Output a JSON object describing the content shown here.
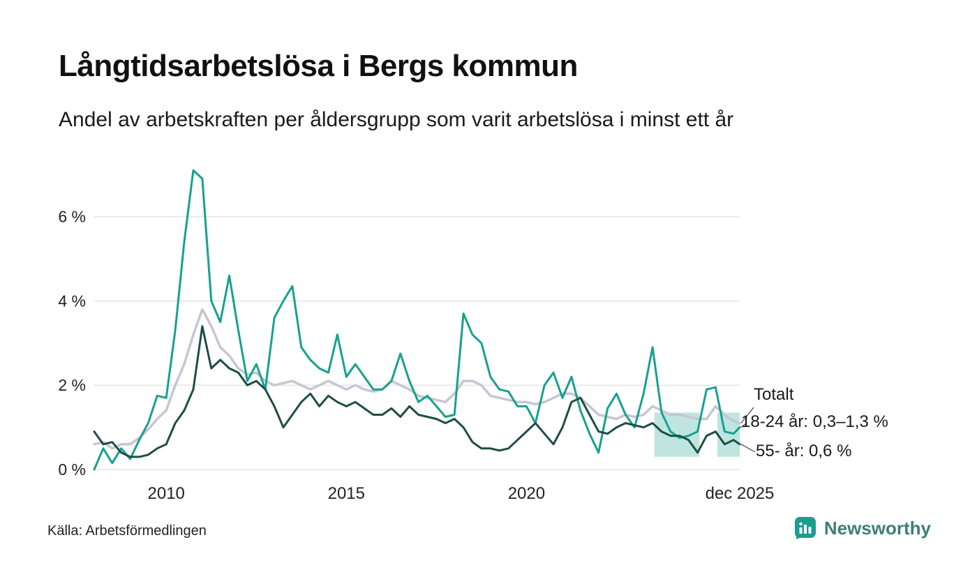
{
  "page": {
    "title": "Långtidsarbetslösa i Bergs kommun",
    "subtitle": "Andel av arbetskraften per åldersgrupp som varit arbetslösa i minst ett år",
    "source": "Källa: Arbetsförmedlingen",
    "brand": {
      "name": "Newsworthy",
      "text_color": "#3d7e78",
      "icon_color": "#1a9e8f"
    }
  },
  "chart_data": {
    "type": "line",
    "title": "Långtidsarbetslösa i Bergs kommun",
    "subtitle": "Andel av arbetskraften per åldersgrupp som varit arbetslösa i minst ett år",
    "xlabel": "",
    "ylabel": "",
    "grid": "horizontal",
    "legend_position": "annotations-right",
    "x_range": [
      2008.0,
      2025.92
    ],
    "y_range": [
      0,
      7.3
    ],
    "colors": {
      "grid": "#e4e4e4",
      "tick_text": "#222222"
    },
    "y_ticks": [
      {
        "value": 0,
        "label": "0 %"
      },
      {
        "value": 2,
        "label": "2 %"
      },
      {
        "value": 4,
        "label": "4 %"
      },
      {
        "value": 6,
        "label": "6 %"
      }
    ],
    "x_ticks": [
      {
        "value": 2010,
        "label": "2010"
      },
      {
        "value": 2015,
        "label": "2015"
      },
      {
        "value": 2020,
        "label": "2020"
      },
      {
        "value": 2025.92,
        "label": "dec 2025"
      }
    ],
    "x": [
      2008,
      2008.25,
      2008.5,
      2008.75,
      2009,
      2009.25,
      2009.5,
      2009.75,
      2010,
      2010.25,
      2010.5,
      2010.75,
      2011,
      2011.25,
      2011.5,
      2011.75,
      2012,
      2012.25,
      2012.5,
      2012.75,
      2013,
      2013.25,
      2013.5,
      2013.75,
      2014,
      2014.25,
      2014.5,
      2014.75,
      2015,
      2015.25,
      2015.5,
      2015.75,
      2016,
      2016.25,
      2016.5,
      2016.75,
      2017,
      2017.25,
      2017.5,
      2017.75,
      2018,
      2018.25,
      2018.5,
      2018.75,
      2019,
      2019.25,
      2019.5,
      2019.75,
      2020,
      2020.25,
      2020.5,
      2020.75,
      2021,
      2021.25,
      2021.5,
      2021.75,
      2022,
      2022.25,
      2022.5,
      2022.75,
      2023,
      2023.25,
      2023.5,
      2023.75,
      2024,
      2024.25,
      2024.5,
      2024.75,
      2025,
      2025.25,
      2025.5,
      2025.75,
      2025.92
    ],
    "series": [
      {
        "name": "Totalt",
        "color": "#c8c5d3",
        "width": 3.5,
        "values": [
          0.6,
          0.65,
          0.5,
          0.6,
          0.6,
          0.75,
          0.95,
          1.2,
          1.4,
          2.0,
          2.5,
          3.2,
          3.8,
          3.4,
          2.9,
          2.7,
          2.4,
          2.25,
          2.3,
          2.1,
          2.0,
          2.05,
          2.1,
          2.0,
          1.9,
          2.0,
          2.1,
          2.0,
          1.9,
          2.0,
          1.9,
          1.85,
          1.9,
          2.1,
          2.0,
          1.9,
          1.75,
          1.7,
          1.65,
          1.6,
          1.8,
          2.1,
          2.1,
          2.0,
          1.75,
          1.7,
          1.65,
          1.6,
          1.6,
          1.55,
          1.6,
          1.7,
          1.8,
          1.8,
          1.7,
          1.5,
          1.3,
          1.25,
          1.2,
          1.3,
          1.25,
          1.3,
          1.5,
          1.4,
          1.3,
          1.3,
          1.25,
          1.2,
          1.2,
          1.5,
          1.3,
          1.15,
          1.1
        ]
      },
      {
        "name": "18-24 år",
        "color": "#16a18f",
        "width": 3,
        "values": [
          0.0,
          0.5,
          0.15,
          0.5,
          0.25,
          0.7,
          1.1,
          1.75,
          1.7,
          3.3,
          5.4,
          7.1,
          6.9,
          4.0,
          3.5,
          4.6,
          3.3,
          2.1,
          2.5,
          1.9,
          3.6,
          4.0,
          4.35,
          2.9,
          2.6,
          2.4,
          2.3,
          3.2,
          2.2,
          2.5,
          2.2,
          1.9,
          1.9,
          2.1,
          2.75,
          2.1,
          1.6,
          1.75,
          1.5,
          1.25,
          1.3,
          3.7,
          3.2,
          3.0,
          2.2,
          1.9,
          1.85,
          1.5,
          1.5,
          1.1,
          2.0,
          2.3,
          1.7,
          2.2,
          1.4,
          0.85,
          0.4,
          1.45,
          1.8,
          1.3,
          1.0,
          1.8,
          2.9,
          1.35,
          0.9,
          0.75,
          0.8,
          0.9,
          1.9,
          1.95,
          0.9,
          0.85,
          1.0
        ]
      },
      {
        "name": "55- år",
        "color": "#1e4d44",
        "width": 3,
        "values": [
          0.9,
          0.6,
          0.65,
          0.4,
          0.3,
          0.3,
          0.35,
          0.5,
          0.6,
          1.1,
          1.4,
          1.9,
          3.4,
          2.4,
          2.6,
          2.4,
          2.3,
          2.0,
          2.1,
          1.9,
          1.5,
          1.0,
          1.3,
          1.6,
          1.8,
          1.5,
          1.75,
          1.6,
          1.5,
          1.6,
          1.45,
          1.3,
          1.3,
          1.45,
          1.25,
          1.5,
          1.3,
          1.25,
          1.2,
          1.1,
          1.2,
          1.0,
          0.65,
          0.5,
          0.5,
          0.45,
          0.5,
          0.7,
          0.9,
          1.1,
          0.85,
          0.6,
          1.0,
          1.6,
          1.7,
          1.3,
          0.9,
          0.85,
          1.0,
          1.1,
          1.05,
          1.0,
          1.1,
          0.9,
          0.8,
          0.8,
          0.7,
          0.4,
          0.8,
          0.9,
          0.6,
          0.7,
          0.6
        ]
      }
    ],
    "band": {
      "series": "18-24 år",
      "color": "#16a18f",
      "opacity": 0.28,
      "y_low": 0.3,
      "y_high": 1.35,
      "segments": [
        [
          2023.55,
          2024.8
        ],
        [
          2025.3,
          2025.92
        ]
      ]
    },
    "annotations": [
      {
        "label": "Totalt",
        "series": "Totalt",
        "target_value": 1.1
      },
      {
        "label": "18-24 år: 0,3–1,3 %",
        "series": "18-24 år",
        "target_value": 1.0
      },
      {
        "label": "55- år: 0,6 %",
        "series": "55- år",
        "target_value": 0.6
      }
    ]
  }
}
